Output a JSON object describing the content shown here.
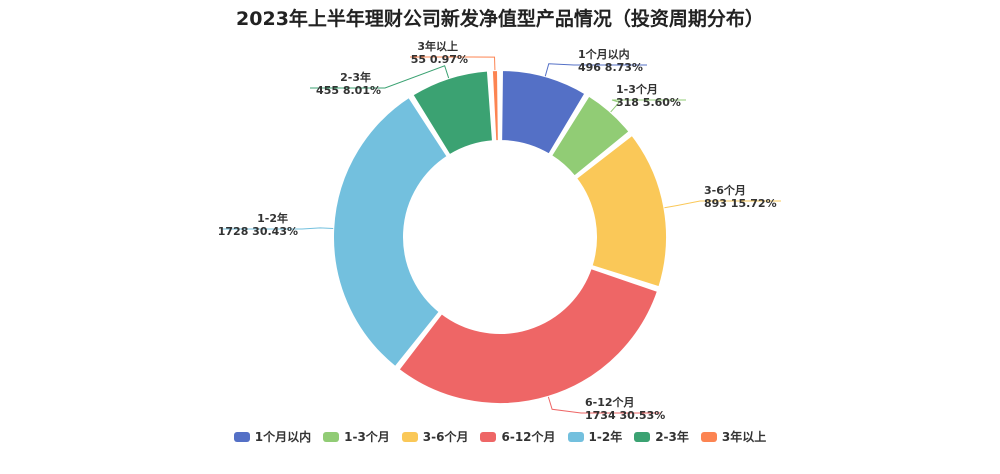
{
  "chart_data": {
    "type": "pie",
    "variant": "donut",
    "title": "2023年上半年理财公司新发净值型产品情况（投资周期分布）",
    "categories": [
      "1个月以内",
      "1-3个月",
      "3-6个月",
      "6-12个月",
      "1-2年",
      "2-3年",
      "3年以上"
    ],
    "values": [
      496,
      318,
      893,
      1734,
      1728,
      455,
      55
    ],
    "percent_labels": [
      "8.73%",
      "5.60%",
      "15.72%",
      "30.53%",
      "30.43%",
      "8.01%",
      "0.97%"
    ],
    "colors": [
      "#5470c6",
      "#91cc75",
      "#fac858",
      "#ee6666",
      "#73c0de",
      "#3ba272",
      "#fc8452"
    ],
    "legend_position": "bottom"
  }
}
